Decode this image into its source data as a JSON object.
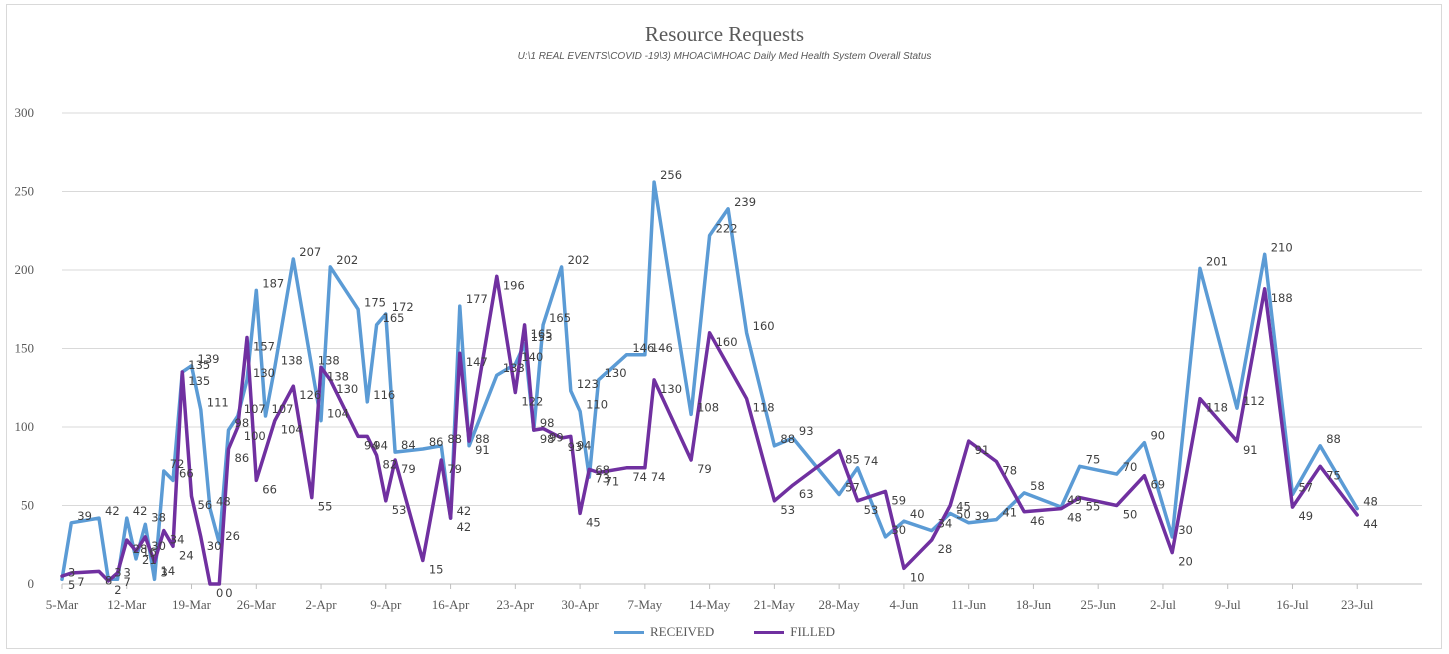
{
  "colors": {
    "received": "#5b9bd5",
    "filled": "#7030a0",
    "grid": "#d9d9d9",
    "axis": "#bfbfbf",
    "text": "#595959"
  },
  "chart_data": {
    "type": "line",
    "title": "Resource Requests",
    "subtitle": "U:\\1 REAL EVENTS\\COVID -19\\3) MHOAC\\MHOAC Daily Med Health System Overall Status",
    "xlim": [
      "2020-03-05",
      "2020-07-30"
    ],
    "ylim": [
      0,
      300
    ],
    "yticks": [
      0,
      50,
      100,
      150,
      200,
      250,
      300
    ],
    "xticks": [
      {
        "date": "2020-03-05",
        "label": "5-Mar"
      },
      {
        "date": "2020-03-12",
        "label": "12-Mar"
      },
      {
        "date": "2020-03-19",
        "label": "19-Mar"
      },
      {
        "date": "2020-03-26",
        "label": "26-Mar"
      },
      {
        "date": "2020-04-02",
        "label": "2-Apr"
      },
      {
        "date": "2020-04-09",
        "label": "9-Apr"
      },
      {
        "date": "2020-04-16",
        "label": "16-Apr"
      },
      {
        "date": "2020-04-23",
        "label": "23-Apr"
      },
      {
        "date": "2020-04-30",
        "label": "30-Apr"
      },
      {
        "date": "2020-05-07",
        "label": "7-May"
      },
      {
        "date": "2020-05-14",
        "label": "14-May"
      },
      {
        "date": "2020-05-21",
        "label": "21-May"
      },
      {
        "date": "2020-05-28",
        "label": "28-May"
      },
      {
        "date": "2020-06-04",
        "label": "4-Jun"
      },
      {
        "date": "2020-06-11",
        "label": "11-Jun"
      },
      {
        "date": "2020-06-18",
        "label": "18-Jun"
      },
      {
        "date": "2020-06-25",
        "label": "25-Jun"
      },
      {
        "date": "2020-07-02",
        "label": "2-Jul"
      },
      {
        "date": "2020-07-09",
        "label": "9-Jul"
      },
      {
        "date": "2020-07-16",
        "label": "16-Jul"
      },
      {
        "date": "2020-07-23",
        "label": "23-Jul"
      }
    ],
    "grid": true,
    "legend_position": "bottom",
    "series": [
      {
        "name": "RECEIVED",
        "points": [
          [
            "2020-03-05",
            3
          ],
          [
            "2020-03-06",
            39
          ],
          [
            "2020-03-09",
            42
          ],
          [
            "2020-03-10",
            3
          ],
          [
            "2020-03-11",
            3
          ],
          [
            "2020-03-12",
            42
          ],
          [
            "2020-03-13",
            16
          ],
          [
            "2020-03-14",
            38
          ],
          [
            "2020-03-15",
            3
          ],
          [
            "2020-03-16",
            72
          ],
          [
            "2020-03-17",
            66
          ],
          [
            "2020-03-18",
            135
          ],
          [
            "2020-03-19",
            139
          ],
          [
            "2020-03-20",
            111
          ],
          [
            "2020-03-21",
            48
          ],
          [
            "2020-03-22",
            26
          ],
          [
            "2020-03-23",
            98
          ],
          [
            "2020-03-24",
            107
          ],
          [
            "2020-03-25",
            130
          ],
          [
            "2020-03-26",
            187
          ],
          [
            "2020-03-27",
            107
          ],
          [
            "2020-03-28",
            138
          ],
          [
            "2020-03-30",
            207
          ],
          [
            "2020-04-01",
            138
          ],
          [
            "2020-04-02",
            104
          ],
          [
            "2020-04-03",
            202
          ],
          [
            "2020-04-06",
            175
          ],
          [
            "2020-04-07",
            116
          ],
          [
            "2020-04-08",
            165
          ],
          [
            "2020-04-09",
            172
          ],
          [
            "2020-04-10",
            84
          ],
          [
            "2020-04-13",
            86
          ],
          [
            "2020-04-15",
            88
          ],
          [
            "2020-04-16",
            42
          ],
          [
            "2020-04-17",
            177
          ],
          [
            "2020-04-18",
            88
          ],
          [
            "2020-04-21",
            133
          ],
          [
            "2020-04-23",
            140
          ],
          [
            "2020-04-24",
            153
          ],
          [
            "2020-04-25",
            98
          ],
          [
            "2020-04-26",
            165
          ],
          [
            "2020-04-28",
            202
          ],
          [
            "2020-04-29",
            123
          ],
          [
            "2020-04-30",
            110
          ],
          [
            "2020-05-01",
            68
          ],
          [
            "2020-05-02",
            130
          ],
          [
            "2020-05-05",
            146
          ],
          [
            "2020-05-07",
            146
          ],
          [
            "2020-05-08",
            256
          ],
          [
            "2020-05-12",
            108
          ],
          [
            "2020-05-14",
            222
          ],
          [
            "2020-05-16",
            239
          ],
          [
            "2020-05-18",
            160
          ],
          [
            "2020-05-21",
            88
          ],
          [
            "2020-05-23",
            93
          ],
          [
            "2020-05-28",
            57
          ],
          [
            "2020-05-30",
            74
          ],
          [
            "2020-06-02",
            30
          ],
          [
            "2020-06-04",
            40
          ],
          [
            "2020-06-07",
            34
          ],
          [
            "2020-06-09",
            45
          ],
          [
            "2020-06-11",
            39
          ],
          [
            "2020-06-14",
            41
          ],
          [
            "2020-06-17",
            58
          ],
          [
            "2020-06-21",
            49
          ],
          [
            "2020-06-23",
            75
          ],
          [
            "2020-06-27",
            70
          ],
          [
            "2020-06-30",
            90
          ],
          [
            "2020-07-03",
            30
          ],
          [
            "2020-07-06",
            201
          ],
          [
            "2020-07-10",
            112
          ],
          [
            "2020-07-13",
            210
          ],
          [
            "2020-07-16",
            57
          ],
          [
            "2020-07-19",
            88
          ],
          [
            "2020-07-23",
            48
          ]
        ]
      },
      {
        "name": "FILLED",
        "points": [
          [
            "2020-03-05",
            5
          ],
          [
            "2020-03-06",
            7
          ],
          [
            "2020-03-09",
            8
          ],
          [
            "2020-03-10",
            2
          ],
          [
            "2020-03-11",
            7
          ],
          [
            "2020-03-12",
            28
          ],
          [
            "2020-03-13",
            21
          ],
          [
            "2020-03-14",
            30
          ],
          [
            "2020-03-15",
            14
          ],
          [
            "2020-03-16",
            34
          ],
          [
            "2020-03-17",
            24
          ],
          [
            "2020-03-18",
            135
          ],
          [
            "2020-03-19",
            56
          ],
          [
            "2020-03-20",
            30
          ],
          [
            "2020-03-21",
            0
          ],
          [
            "2020-03-22",
            0
          ],
          [
            "2020-03-23",
            86
          ],
          [
            "2020-03-24",
            100
          ],
          [
            "2020-03-25",
            157
          ],
          [
            "2020-03-26",
            66
          ],
          [
            "2020-03-28",
            104
          ],
          [
            "2020-03-30",
            126
          ],
          [
            "2020-04-01",
            55
          ],
          [
            "2020-04-02",
            138
          ],
          [
            "2020-04-03",
            130
          ],
          [
            "2020-04-06",
            94
          ],
          [
            "2020-04-07",
            94
          ],
          [
            "2020-04-08",
            82
          ],
          [
            "2020-04-09",
            53
          ],
          [
            "2020-04-10",
            79
          ],
          [
            "2020-04-13",
            15
          ],
          [
            "2020-04-15",
            79
          ],
          [
            "2020-04-16",
            42
          ],
          [
            "2020-04-17",
            147
          ],
          [
            "2020-04-18",
            91
          ],
          [
            "2020-04-21",
            196
          ],
          [
            "2020-04-23",
            122
          ],
          [
            "2020-04-24",
            165
          ],
          [
            "2020-04-25",
            98
          ],
          [
            "2020-04-26",
            99
          ],
          [
            "2020-04-28",
            93
          ],
          [
            "2020-04-29",
            94
          ],
          [
            "2020-04-30",
            45
          ],
          [
            "2020-05-01",
            73
          ],
          [
            "2020-05-02",
            71
          ],
          [
            "2020-05-05",
            74
          ],
          [
            "2020-05-07",
            74
          ],
          [
            "2020-05-08",
            130
          ],
          [
            "2020-05-12",
            79
          ],
          [
            "2020-05-14",
            160
          ],
          [
            "2020-05-18",
            118
          ],
          [
            "2020-05-21",
            53
          ],
          [
            "2020-05-23",
            63
          ],
          [
            "2020-05-28",
            85
          ],
          [
            "2020-05-30",
            53
          ],
          [
            "2020-06-02",
            59
          ],
          [
            "2020-06-04",
            10
          ],
          [
            "2020-06-07",
            28
          ],
          [
            "2020-06-09",
            50
          ],
          [
            "2020-06-11",
            91
          ],
          [
            "2020-06-14",
            78
          ],
          [
            "2020-06-17",
            46
          ],
          [
            "2020-06-21",
            48
          ],
          [
            "2020-06-23",
            55
          ],
          [
            "2020-06-27",
            50
          ],
          [
            "2020-06-30",
            69
          ],
          [
            "2020-07-03",
            20
          ],
          [
            "2020-07-06",
            118
          ],
          [
            "2020-07-10",
            91
          ],
          [
            "2020-07-13",
            188
          ],
          [
            "2020-07-16",
            49
          ],
          [
            "2020-07-19",
            75
          ],
          [
            "2020-07-23",
            44
          ]
        ]
      }
    ]
  }
}
